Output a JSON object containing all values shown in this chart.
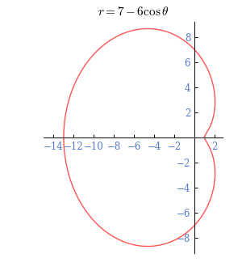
{
  "title": "$r = 7 - 6\\cos\\theta$",
  "curve_color": "#FF5555",
  "curve_linewidth": 1.0,
  "xlim": [
    -15.0,
    2.8
  ],
  "ylim": [
    -9.2,
    9.2
  ],
  "xticks": [
    -14,
    -12,
    -10,
    -8,
    -6,
    -4,
    -2,
    2
  ],
  "yticks": [
    -8,
    -6,
    -4,
    -2,
    2,
    4,
    6,
    8
  ],
  "tick_label_color": "#5577CC",
  "tick_label_fontsize": 8.5,
  "title_fontsize": 11,
  "background_color": "#FFFFFF",
  "figsize": [
    3.0,
    3.4
  ],
  "dpi": 100
}
